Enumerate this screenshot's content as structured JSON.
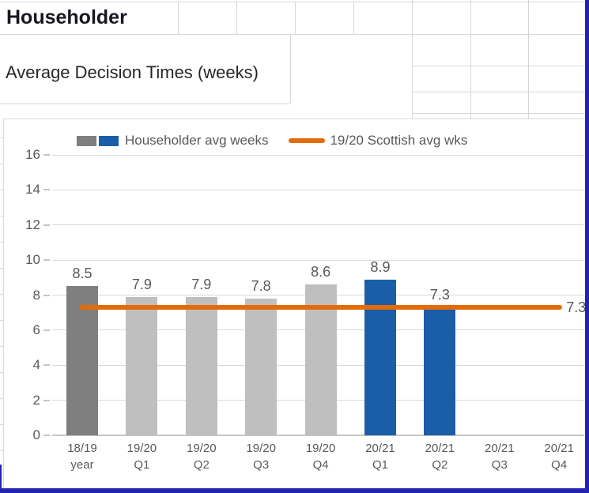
{
  "sheet": {
    "title": "Householder",
    "subtitle": "Average Decision Times (weeks)"
  },
  "chart_data": {
    "type": "bar",
    "title": "",
    "xlabel": "",
    "ylabel": "",
    "categories": [
      "18/19 year",
      "19/20 Q1",
      "19/20 Q2",
      "19/20 Q3",
      "19/20 Q4",
      "20/21 Q1",
      "20/21 Q2",
      "20/21 Q3",
      "20/21 Q4"
    ],
    "series": [
      {
        "name": "Householder avg weeks",
        "type": "bar",
        "values": [
          8.5,
          7.9,
          7.9,
          7.8,
          8.6,
          8.9,
          7.3,
          null,
          null
        ],
        "data_labels": [
          "8.5",
          "7.9",
          "7.9",
          "7.8",
          "8.6",
          "8.9",
          "7.3"
        ],
        "point_colors": [
          "#7F7F7F",
          "#BFBFBF",
          "#BFBFBF",
          "#BFBFBF",
          "#BFBFBF",
          "#1B5EA8",
          "#1B5EA8",
          null,
          null
        ]
      },
      {
        "name": "19/20 Scottish avg wks",
        "type": "line",
        "values": [
          7.3,
          7.3,
          7.3,
          7.3,
          7.3,
          7.3,
          7.3,
          7.3,
          7.3
        ],
        "color": "#E36C0A",
        "end_label": "7.3"
      }
    ],
    "ylim": [
      0,
      16
    ],
    "ytick_step": 2,
    "ytick_labels": [
      "0",
      "2",
      "4",
      "6",
      "8",
      "10",
      "12",
      "14",
      "16"
    ],
    "grid": true,
    "legend_position": "top",
    "colors": {
      "grid": "#DADADA",
      "axis": "#C6C6C6",
      "label": "#595959"
    }
  },
  "window": {
    "border_color": "#2323B2"
  }
}
